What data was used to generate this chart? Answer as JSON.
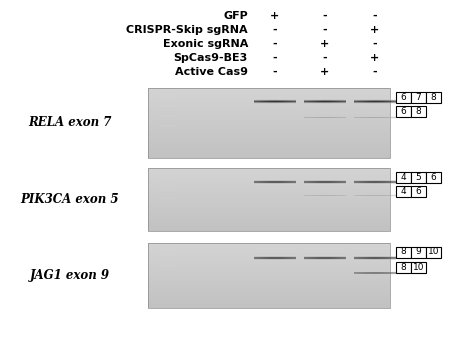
{
  "bg_color": "#ffffff",
  "header_labels": [
    "GFP",
    "CRISPR-Skip sgRNA",
    "Exonic sgRNA",
    "SpCas9-BE3",
    "Active Cas9"
  ],
  "col_signs": [
    [
      "+",
      "-",
      "-"
    ],
    [
      "-",
      "-",
      "+"
    ],
    [
      "-",
      "+",
      "-"
    ],
    [
      "-",
      "-",
      "+"
    ],
    [
      "-",
      "+",
      "-"
    ]
  ],
  "gene_labels": [
    "RELA exon 7",
    "PIK3CA exon 5",
    "JAG1 exon 9"
  ],
  "exon_boxes_top": [
    [
      "6",
      "7",
      "8"
    ],
    [
      "4",
      "5",
      "6"
    ],
    [
      "8",
      "9",
      "10"
    ]
  ],
  "exon_boxes_bot": [
    [
      "6",
      "8"
    ],
    [
      "4",
      "6"
    ],
    [
      "8",
      "10"
    ]
  ],
  "fig_width": 4.74,
  "fig_height": 3.63,
  "dpi": 100
}
